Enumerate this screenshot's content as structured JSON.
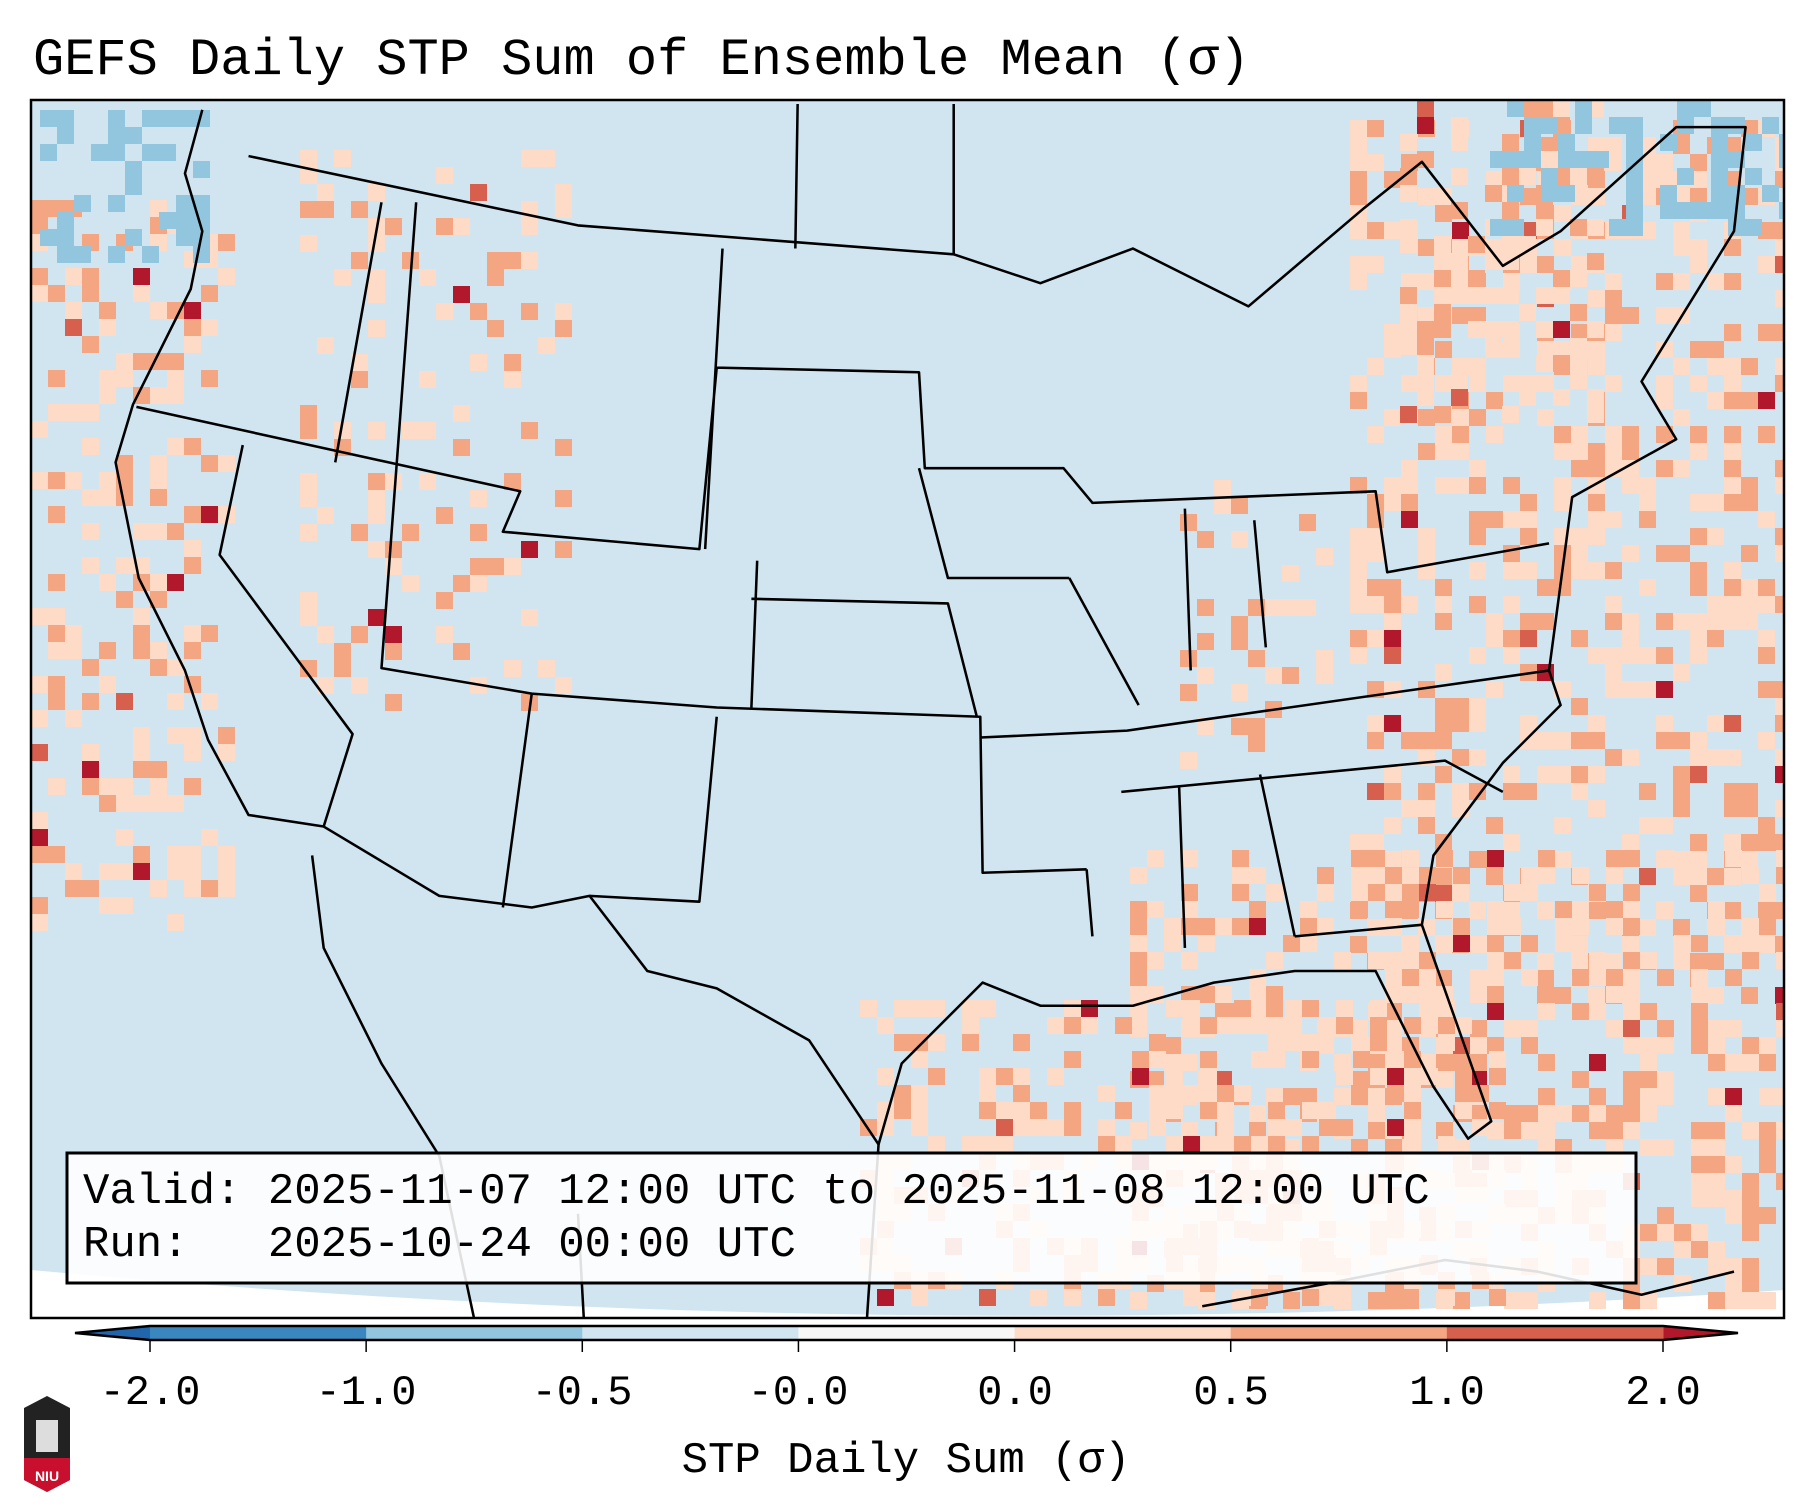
{
  "title": "GEFS Daily STP Sum of Ensemble Mean (σ)",
  "info_box": {
    "valid_line": "Valid: 2025-11-07 12:00 UTC to 2025-11-08 12:00 UTC",
    "run_line": "Run:   2025-10-24 00:00 UTC"
  },
  "colorbar": {
    "label": "STP Daily Sum (σ)",
    "ticks": [
      "-2.0",
      "-1.0",
      "-0.5",
      "-0.0",
      "0.0",
      "0.5",
      "1.0",
      "2.0"
    ],
    "bounds": [
      -2.0,
      -1.0,
      -0.5,
      -0.0,
      0.0,
      0.5,
      1.0,
      2.0
    ],
    "colors": [
      "#3a87c0",
      "#92c5de",
      "#d1e5f0",
      "#f7f7f7",
      "#fddbc7",
      "#f4a582",
      "#d6604d"
    ],
    "under_color": "#2166ac",
    "over_color": "#b2182b"
  },
  "logo": {
    "text": "NIU"
  },
  "map_background": "#d1e5f0"
}
